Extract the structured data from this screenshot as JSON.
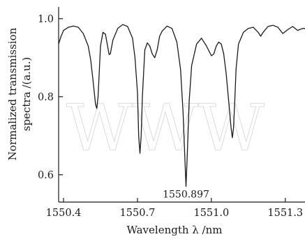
{
  "chart_data": {
    "type": "line",
    "title": "",
    "xlabel": "Wavelength λ /nm",
    "ylabel_lines": [
      "Normalized transmission",
      "spectra /(a.u.)"
    ],
    "xlim": [
      1550.38,
      1551.38
    ],
    "ylim": [
      0.53,
      1.03
    ],
    "x_ticks": [
      1550.4,
      1550.7,
      1551.0,
      1551.3
    ],
    "x_tick_labels": [
      "1550.4",
      "1550.7",
      "1551.0",
      "1551.3"
    ],
    "y_ticks": [
      0.6,
      0.8,
      1.0
    ],
    "y_tick_labels": [
      "0.6",
      "0.8",
      "1.0"
    ],
    "grid": false,
    "annotation": {
      "text": "1550.897",
      "x": 1550.897,
      "y": 0.57
    },
    "watermark": "WWW",
    "series": [
      {
        "color": "#1a1a1a",
        "x": [
          1550.38,
          1550.39,
          1550.4,
          1550.42,
          1550.44,
          1550.46,
          1550.48,
          1550.5,
          1550.51,
          1550.52,
          1550.53,
          1550.535,
          1550.54,
          1550.55,
          1550.56,
          1550.57,
          1550.58,
          1550.585,
          1550.59,
          1550.6,
          1550.62,
          1550.64,
          1550.66,
          1550.68,
          1550.69,
          1550.7,
          1550.705,
          1550.71,
          1550.715,
          1550.72,
          1550.73,
          1550.74,
          1550.75,
          1550.76,
          1550.77,
          1550.78,
          1550.79,
          1550.8,
          1550.82,
          1550.84,
          1550.86,
          1550.875,
          1550.885,
          1550.892,
          1550.897,
          1550.902,
          1550.91,
          1550.92,
          1550.94,
          1550.96,
          1550.98,
          1551.0,
          1551.01,
          1551.02,
          1551.03,
          1551.04,
          1551.05,
          1551.06,
          1551.07,
          1551.08,
          1551.085,
          1551.09,
          1551.095,
          1551.1,
          1551.11,
          1551.13,
          1551.15,
          1551.17,
          1551.19,
          1551.2,
          1551.21,
          1551.23,
          1551.25,
          1551.27,
          1551.29,
          1551.31,
          1551.33,
          1551.35,
          1551.37,
          1551.38
        ],
        "y": [
          0.935,
          0.955,
          0.97,
          0.978,
          0.981,
          0.978,
          0.962,
          0.93,
          0.895,
          0.84,
          0.78,
          0.77,
          0.8,
          0.93,
          0.965,
          0.96,
          0.925,
          0.908,
          0.91,
          0.945,
          0.975,
          0.985,
          0.98,
          0.95,
          0.9,
          0.81,
          0.7,
          0.655,
          0.7,
          0.8,
          0.92,
          0.938,
          0.93,
          0.91,
          0.9,
          0.92,
          0.955,
          0.968,
          0.981,
          0.975,
          0.94,
          0.87,
          0.76,
          0.65,
          0.57,
          0.65,
          0.79,
          0.88,
          0.935,
          0.95,
          0.93,
          0.905,
          0.91,
          0.93,
          0.94,
          0.935,
          0.91,
          0.86,
          0.79,
          0.72,
          0.695,
          0.72,
          0.79,
          0.87,
          0.935,
          0.965,
          0.975,
          0.978,
          0.965,
          0.955,
          0.965,
          0.98,
          0.983,
          0.978,
          0.962,
          0.972,
          0.98,
          0.97,
          0.975,
          0.975
        ]
      }
    ]
  }
}
